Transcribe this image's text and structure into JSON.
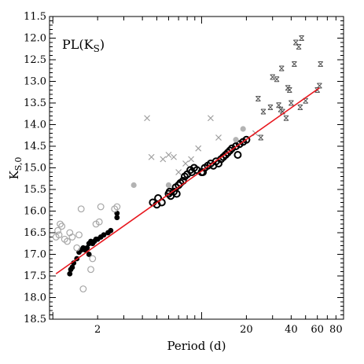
{
  "chart_data": {
    "type": "scatter",
    "title": "",
    "panel_label": "PL(K",
    "panel_label_sub": "S",
    "panel_label_close": ")",
    "xlabel": "Period (d)",
    "ylabel": "K",
    "ylabel_sub": "S,0",
    "x_scale": "log",
    "xlim": [
      0.95,
      90
    ],
    "ylim": [
      18.5,
      11.5
    ],
    "y_inverted": true,
    "x_ticks": [
      2,
      20,
      40,
      60,
      80
    ],
    "y_ticks": [
      11.5,
      12.0,
      12.5,
      13.0,
      13.5,
      14.0,
      14.5,
      15.0,
      15.5,
      16.0,
      16.5,
      17.0,
      17.5,
      18.0,
      18.5
    ],
    "y_tick_labels": [
      "11.5",
      "12.0",
      "12.5",
      "13.0",
      "13.5",
      "14.0",
      "14.5",
      "15.0",
      "15.5",
      "16.0",
      "16.5",
      "17.0",
      "17.5",
      "18.0",
      "18.5"
    ],
    "fit_line": {
      "color": "#e8171e",
      "x": [
        1.05,
        62
      ],
      "y": [
        17.45,
        13.15
      ]
    },
    "series": [
      {
        "marker": "filled-circle",
        "color": "#000000",
        "points": [
          [
            1.3,
            17.45
          ],
          [
            1.32,
            17.35
          ],
          [
            1.35,
            17.3
          ],
          [
            1.38,
            17.2
          ],
          [
            1.45,
            17.1
          ],
          [
            1.5,
            16.95
          ],
          [
            1.55,
            16.9
          ],
          [
            1.6,
            16.85
          ],
          [
            1.65,
            16.9
          ],
          [
            1.7,
            16.85
          ],
          [
            1.75,
            16.75
          ],
          [
            1.8,
            16.7
          ],
          [
            1.85,
            16.75
          ],
          [
            1.9,
            16.7
          ],
          [
            1.95,
            16.65
          ],
          [
            2.0,
            16.65
          ],
          [
            2.1,
            16.6
          ],
          [
            2.2,
            16.55
          ],
          [
            2.35,
            16.5
          ],
          [
            2.45,
            16.45
          ],
          [
            2.7,
            16.15
          ],
          [
            2.7,
            16.05
          ],
          [
            1.75,
            17.0
          ]
        ]
      },
      {
        "marker": "open-circle-bold",
        "color": "#000000",
        "points": [
          [
            4.7,
            15.8
          ],
          [
            5.1,
            15.7
          ],
          [
            5.0,
            15.85
          ],
          [
            5.4,
            15.8
          ],
          [
            6.0,
            15.6
          ],
          [
            6.1,
            15.55
          ],
          [
            6.2,
            15.65
          ],
          [
            6.5,
            15.55
          ],
          [
            6.8,
            15.6
          ],
          [
            6.7,
            15.45
          ],
          [
            7.0,
            15.4
          ],
          [
            7.2,
            15.35
          ],
          [
            7.5,
            15.3
          ],
          [
            7.7,
            15.2
          ],
          [
            8.0,
            15.15
          ],
          [
            8.4,
            15.05
          ],
          [
            8.6,
            15.1
          ],
          [
            8.9,
            15.0
          ],
          [
            9.3,
            15.05
          ],
          [
            10.0,
            15.1
          ],
          [
            10.5,
            15.0
          ],
          [
            11.0,
            14.95
          ],
          [
            11.5,
            14.9
          ],
          [
            12.0,
            14.95
          ],
          [
            12.5,
            14.85
          ],
          [
            13.0,
            14.9
          ],
          [
            13.5,
            14.8
          ],
          [
            14.0,
            14.75
          ],
          [
            14.5,
            14.7
          ],
          [
            15.0,
            14.65
          ],
          [
            15.5,
            14.6
          ],
          [
            16.0,
            14.55
          ],
          [
            17.0,
            14.5
          ],
          [
            18.0,
            14.45
          ],
          [
            19.0,
            14.4
          ],
          [
            20.0,
            14.35
          ],
          [
            17.5,
            14.7
          ],
          [
            10.2,
            15.1
          ]
        ]
      },
      {
        "marker": "open-circle-gray",
        "color": "#a6a6a6",
        "points": [
          [
            1.05,
            16.6
          ],
          [
            1.08,
            16.45
          ],
          [
            1.1,
            16.55
          ],
          [
            1.12,
            16.3
          ],
          [
            1.15,
            16.35
          ],
          [
            1.2,
            16.65
          ],
          [
            1.25,
            16.7
          ],
          [
            1.3,
            16.5
          ],
          [
            1.35,
            16.6
          ],
          [
            1.45,
            16.85
          ],
          [
            1.5,
            16.55
          ],
          [
            1.55,
            15.95
          ],
          [
            1.8,
            17.35
          ],
          [
            1.85,
            17.1
          ],
          [
            1.95,
            16.3
          ],
          [
            2.05,
            16.25
          ],
          [
            2.1,
            15.9
          ],
          [
            1.6,
            17.8
          ],
          [
            2.6,
            15.95
          ],
          [
            2.7,
            15.9
          ]
        ]
      },
      {
        "marker": "filled-circle-gray",
        "color": "#b3b3b3",
        "points": [
          [
            3.5,
            15.4
          ],
          [
            6.0,
            15.4
          ],
          [
            17.0,
            14.35
          ],
          [
            19.0,
            14.1
          ]
        ]
      },
      {
        "marker": "cross-gray",
        "color": "#9e9e9e",
        "points": [
          [
            4.3,
            13.85
          ],
          [
            4.6,
            14.75
          ],
          [
            5.5,
            14.8
          ],
          [
            6.0,
            14.7
          ],
          [
            6.5,
            14.75
          ],
          [
            7.0,
            15.1
          ],
          [
            7.8,
            14.9
          ],
          [
            8.5,
            14.8
          ],
          [
            9.5,
            14.55
          ],
          [
            11.5,
            13.85
          ],
          [
            13.0,
            14.3
          ],
          [
            23.0,
            14.2
          ]
        ]
      },
      {
        "marker": "star-cross",
        "color": "#555555",
        "points": [
          [
            24,
            13.4
          ],
          [
            25,
            14.3
          ],
          [
            26,
            13.7
          ],
          [
            29,
            13.6
          ],
          [
            30,
            12.9
          ],
          [
            32,
            12.95
          ],
          [
            33,
            13.55
          ],
          [
            34,
            13.65
          ],
          [
            34.5,
            12.7
          ],
          [
            35,
            13.7
          ],
          [
            37,
            13.85
          ],
          [
            40,
            13.5
          ],
          [
            38,
            13.15
          ],
          [
            39,
            13.2
          ],
          [
            42,
            12.6
          ],
          [
            43,
            12.1
          ],
          [
            45,
            12.2
          ],
          [
            46,
            13.6
          ],
          [
            47,
            12.0
          ],
          [
            50,
            13.45
          ],
          [
            60,
            13.2
          ],
          [
            62,
            13.1
          ],
          [
            63,
            12.6
          ]
        ]
      }
    ]
  }
}
